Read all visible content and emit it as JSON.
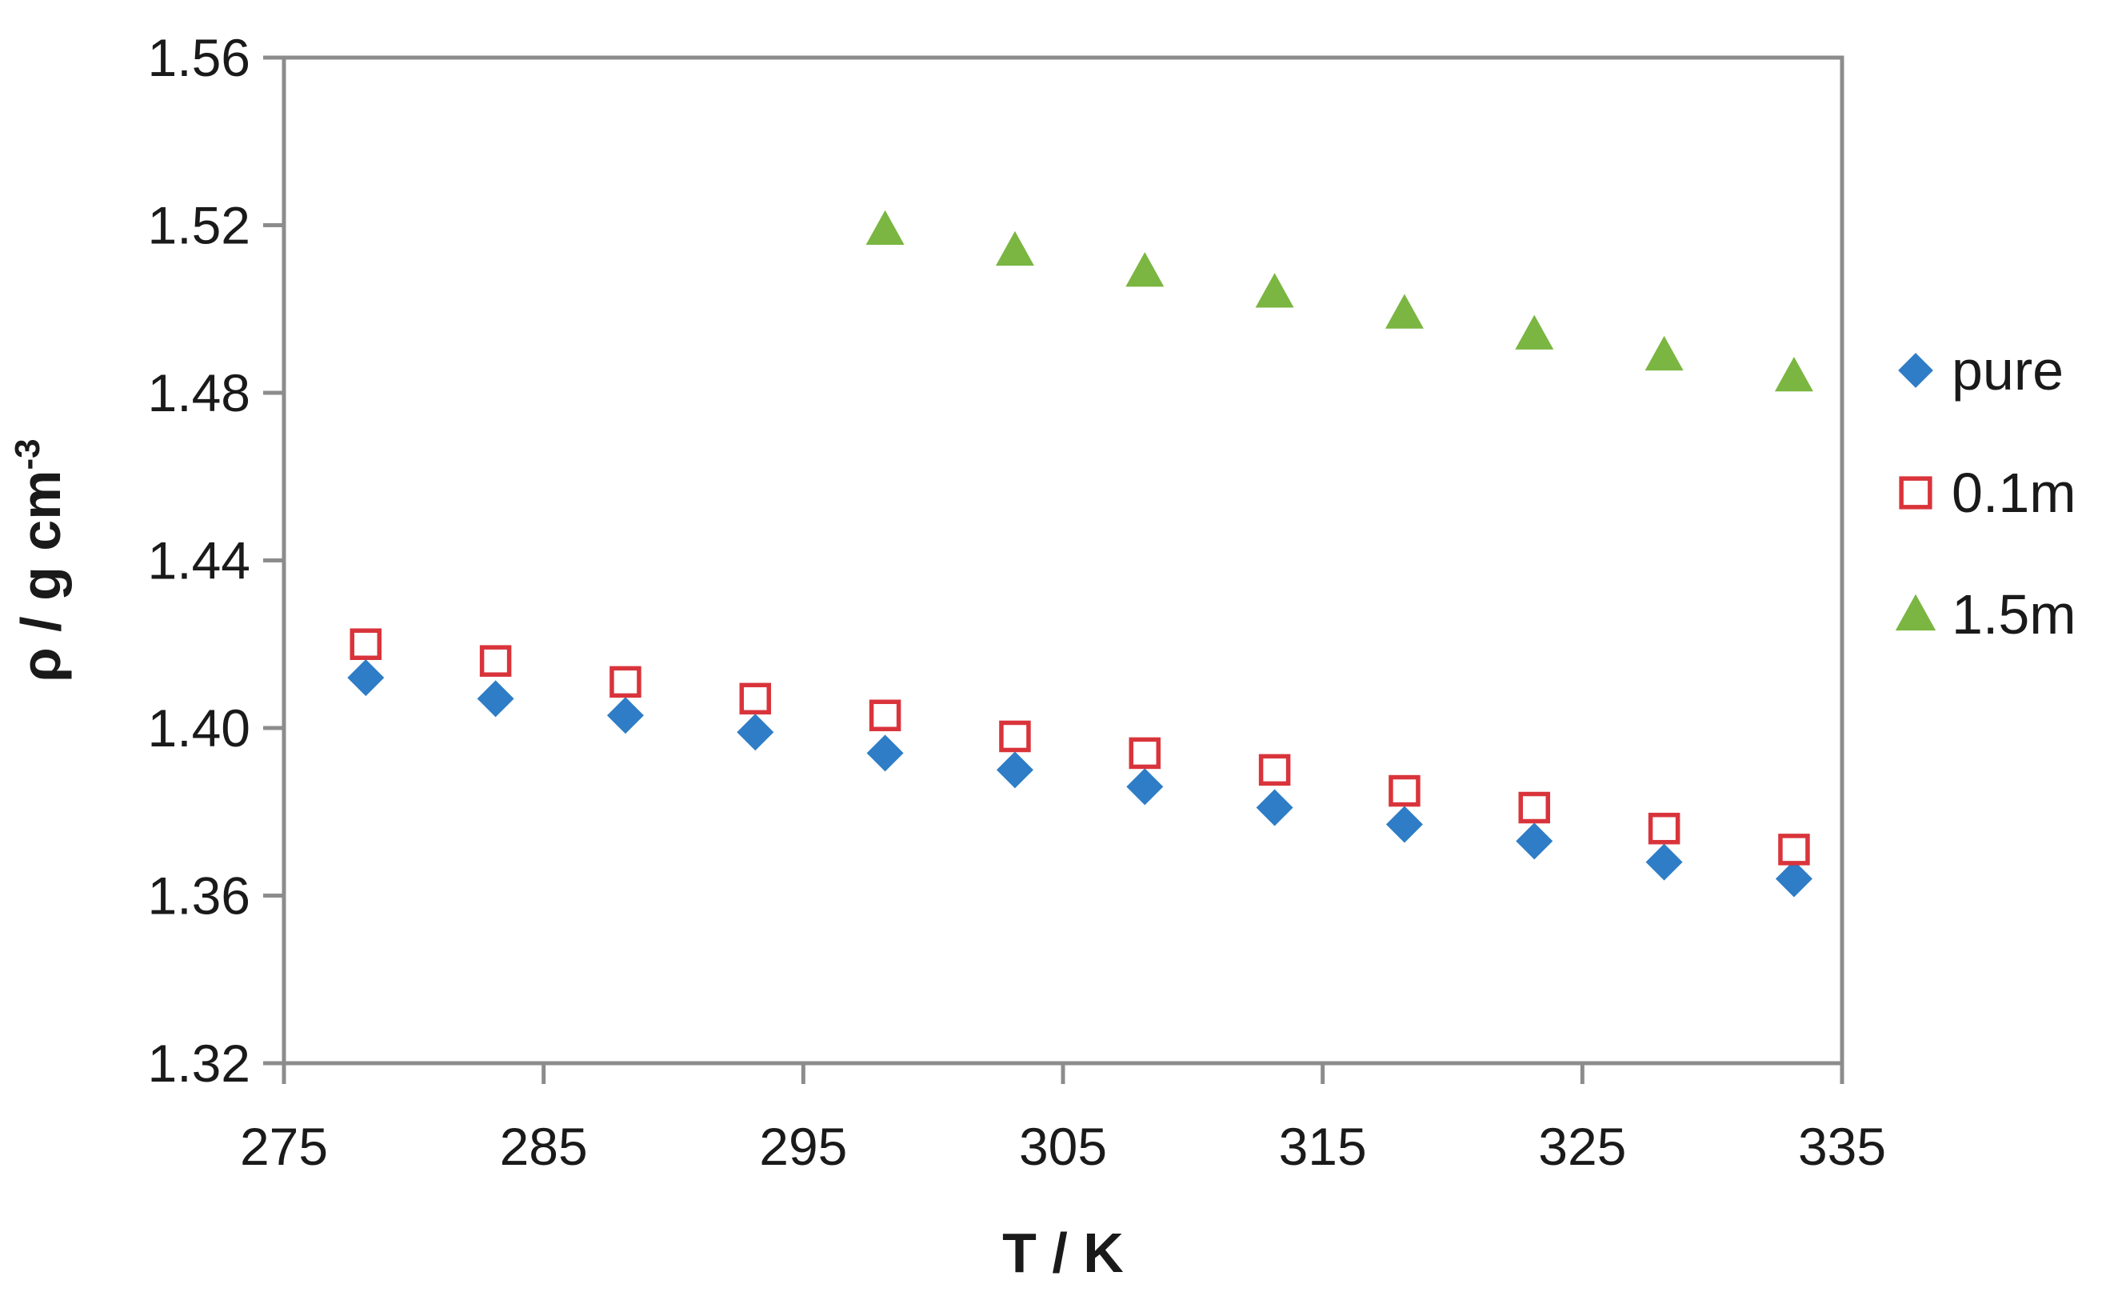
{
  "chart_data": {
    "type": "scatter",
    "xlabel": "T / K",
    "ylabel_main": "ρ / g cm",
    "ylabel_sup": "-3",
    "xlim": [
      275,
      335
    ],
    "ylim": [
      1.32,
      1.56
    ],
    "xticks": [
      275,
      285,
      295,
      305,
      315,
      325,
      335
    ],
    "yticks": [
      1.32,
      1.36,
      1.4,
      1.44,
      1.48,
      1.52,
      1.56
    ],
    "ytick_labels": [
      "1.32",
      "1.36",
      "1.40",
      "1.44",
      "1.48",
      "1.52",
      "1.56"
    ],
    "grid": false,
    "legend_position": "right",
    "series": [
      {
        "name": "pure",
        "marker": "diamond",
        "color": "#2e7dc6",
        "x": [
          278.15,
          283.15,
          288.15,
          293.15,
          298.15,
          303.15,
          308.15,
          313.15,
          318.15,
          323.15,
          328.15,
          333.15
        ],
        "y": [
          1.412,
          1.407,
          1.403,
          1.399,
          1.394,
          1.39,
          1.386,
          1.381,
          1.377,
          1.373,
          1.368,
          1.364
        ]
      },
      {
        "name": "0.1m",
        "marker": "square-open",
        "color": "#d9343b",
        "x": [
          278.15,
          283.15,
          288.15,
          293.15,
          298.15,
          303.15,
          308.15,
          313.15,
          318.15,
          323.15,
          328.15,
          333.15
        ],
        "y": [
          1.42,
          1.416,
          1.411,
          1.407,
          1.403,
          1.398,
          1.394,
          1.39,
          1.385,
          1.381,
          1.376,
          1.371
        ]
      },
      {
        "name": "1.5m",
        "marker": "triangle",
        "color": "#7ab641",
        "x": [
          298.15,
          303.15,
          308.15,
          313.15,
          318.15,
          323.15,
          328.15,
          333.15
        ],
        "y": [
          1.519,
          1.514,
          1.509,
          1.504,
          1.499,
          1.494,
          1.489,
          1.484
        ]
      }
    ]
  }
}
